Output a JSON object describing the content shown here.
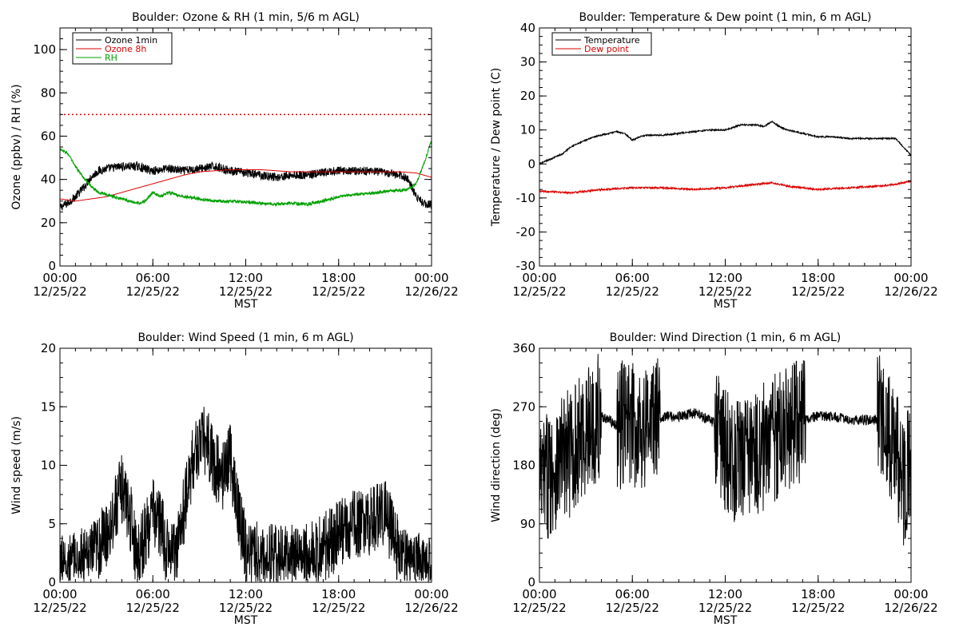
{
  "colors": {
    "black": "#000000",
    "red": "#dd0000",
    "green": "#00a000",
    "background": "#ffffff"
  },
  "chart_data": [
    {
      "id": "ozone_rh",
      "type": "line",
      "title": "Boulder: Ozone & RH (1 min, 5/6 m AGL)",
      "xlabel": "MST",
      "ylabel": "Ozone (ppbv) / RH (%)",
      "xlim": [
        0,
        24
      ],
      "ylim": [
        0,
        110
      ],
      "yticks": [
        0,
        20,
        40,
        60,
        80,
        100
      ],
      "xticks": [
        {
          "hour": 0,
          "time": "00:00",
          "date": "12/25/22"
        },
        {
          "hour": 6,
          "time": "06:00",
          "date": "12/25/22"
        },
        {
          "hour": 12,
          "time": "12:00",
          "date": "12/25/22"
        },
        {
          "hour": 18,
          "time": "18:00",
          "date": "12/25/22"
        },
        {
          "hour": 24,
          "time": "00:00",
          "date": "12/26/22"
        }
      ],
      "reference_line": {
        "y": 70,
        "color": "#dd0000",
        "style": "dotted"
      },
      "legend_position": "top-left",
      "series": [
        {
          "name": "Ozone 1min",
          "color": "#000000",
          "noise": 2.0,
          "x": [
            0,
            0.5,
            1,
            1.5,
            2,
            2.5,
            3,
            4,
            5,
            6,
            7,
            8,
            9,
            10,
            11,
            12,
            13,
            14,
            15,
            16,
            17,
            18,
            19,
            20,
            21,
            22,
            22.5,
            23,
            23.5,
            24
          ],
          "y": [
            27,
            29,
            32,
            36,
            41,
            44,
            45,
            46,
            46,
            44,
            45,
            44,
            45,
            46,
            44,
            43,
            42,
            41,
            42,
            42,
            43,
            44,
            44,
            44,
            43,
            42,
            40,
            32,
            29,
            28
          ]
        },
        {
          "name": "Ozone 8h",
          "color": "#dd0000",
          "noise": 0,
          "x": [
            0,
            1,
            2,
            3,
            4,
            5,
            6,
            7,
            8,
            9,
            10,
            11,
            12,
            13,
            14,
            15,
            16,
            17,
            18,
            19,
            20,
            21,
            22,
            23,
            24
          ],
          "y": [
            31,
            30,
            31,
            32,
            34,
            36,
            38,
            40,
            42,
            43.5,
            44,
            44.5,
            44.5,
            44.5,
            44,
            43.5,
            43.5,
            43.5,
            43.5,
            43.5,
            43.5,
            43.5,
            43.5,
            43,
            41
          ]
        },
        {
          "name": "RH",
          "color": "#00a000",
          "noise": 0.7,
          "x": [
            0,
            0.5,
            1,
            1.5,
            2,
            2.5,
            3,
            3.5,
            4,
            4.5,
            5,
            5.5,
            6,
            6.5,
            7,
            8,
            9,
            10,
            11,
            12,
            13,
            14,
            15,
            16,
            17,
            18,
            19,
            20,
            21,
            22,
            22.5,
            23,
            23.5,
            24
          ],
          "y": [
            54,
            52,
            46,
            41,
            37,
            34,
            33,
            32,
            31,
            30,
            29,
            30,
            34,
            32,
            34,
            32,
            31,
            30,
            30,
            29.5,
            29,
            28.5,
            29,
            28.5,
            30,
            32,
            33,
            33.5,
            34.5,
            35,
            35.5,
            38,
            47,
            58
          ]
        }
      ]
    },
    {
      "id": "temp_dew",
      "type": "line",
      "title": "Boulder: Temperature & Dew point (1 min, 6 m AGL)",
      "xlabel": "MST",
      "ylabel": "Temperature / Dew point (C)",
      "xlim": [
        0,
        24
      ],
      "ylim": [
        -30,
        40
      ],
      "yticks": [
        -30,
        -20,
        -10,
        0,
        10,
        20,
        30,
        40
      ],
      "xticks": [
        {
          "hour": 0,
          "time": "00:00",
          "date": "12/25/22"
        },
        {
          "hour": 6,
          "time": "06:00",
          "date": "12/25/22"
        },
        {
          "hour": 12,
          "time": "12:00",
          "date": "12/25/22"
        },
        {
          "hour": 18,
          "time": "18:00",
          "date": "12/25/22"
        },
        {
          "hour": 24,
          "time": "00:00",
          "date": "12/26/22"
        }
      ],
      "legend_position": "top-left",
      "series": [
        {
          "name": "Temperature",
          "color": "#000000",
          "noise": 0.2,
          "x": [
            0,
            0.5,
            1,
            1.5,
            2,
            2.5,
            3,
            3.5,
            4,
            4.5,
            5,
            5.5,
            6,
            6.5,
            7,
            8,
            9,
            10,
            11,
            12,
            13,
            14,
            14.5,
            15,
            15.5,
            16,
            17,
            18,
            19,
            20,
            21,
            22,
            23,
            23.5,
            24
          ],
          "y": [
            0,
            1,
            2,
            3,
            5,
            6,
            7,
            8,
            8.5,
            9,
            9.5,
            9,
            7,
            8,
            8.5,
            8.5,
            9,
            9.5,
            10,
            10,
            11.5,
            11.5,
            11,
            12.5,
            11,
            10,
            9,
            8,
            8,
            7.5,
            7.5,
            7.5,
            7.5,
            5,
            2.5
          ]
        },
        {
          "name": "Dew point",
          "color": "#dd0000",
          "noise": 0.25,
          "x": [
            0,
            2,
            3,
            4,
            6,
            8,
            10,
            12,
            14,
            15,
            16,
            18,
            20,
            22,
            23,
            24
          ],
          "y": [
            -8,
            -8.5,
            -8,
            -7.5,
            -7,
            -7,
            -7.5,
            -7,
            -6,
            -5.5,
            -6.5,
            -7.5,
            -7,
            -6.5,
            -6,
            -5
          ]
        }
      ]
    },
    {
      "id": "wind_speed",
      "type": "line",
      "title": "Boulder: Wind Speed (1 min, 6 m AGL)",
      "xlabel": "MST",
      "ylabel": "Wind speed (m/s)",
      "xlim": [
        0,
        24
      ],
      "ylim": [
        0,
        20
      ],
      "yticks": [
        0,
        5,
        10,
        15,
        20
      ],
      "xticks": [
        {
          "hour": 0,
          "time": "00:00",
          "date": "12/25/22"
        },
        {
          "hour": 6,
          "time": "06:00",
          "date": "12/25/22"
        },
        {
          "hour": 12,
          "time": "12:00",
          "date": "12/25/22"
        },
        {
          "hour": 18,
          "time": "18:00",
          "date": "12/25/22"
        },
        {
          "hour": 24,
          "time": "00:00",
          "date": "12/26/22"
        }
      ],
      "series": [
        {
          "name": "",
          "color": "#000000",
          "noise": 3.0,
          "floor": 0,
          "x": [
            0,
            1,
            2,
            3,
            3.5,
            4,
            4.5,
            5,
            5.5,
            6,
            6.5,
            7,
            7.5,
            8,
            8.5,
            9,
            9.5,
            10,
            10.5,
            11,
            11.5,
            12,
            13,
            14,
            15,
            16,
            17,
            18,
            19,
            20,
            20.5,
            21,
            21.5,
            22,
            23,
            24
          ],
          "y": [
            1,
            1.5,
            2,
            4,
            6,
            8,
            6,
            2,
            4,
            6,
            5,
            2,
            3,
            6,
            10,
            12,
            12,
            10,
            9,
            11,
            6,
            3,
            2,
            2,
            2,
            2,
            3,
            4,
            5,
            5,
            6,
            6,
            4,
            2,
            1.5,
            1
          ]
        }
      ]
    },
    {
      "id": "wind_dir",
      "type": "line",
      "title": "Boulder: Wind Direction (1 min, 6 m AGL)",
      "xlabel": "MST",
      "ylabel": "Wind direction (deg)",
      "xlim": [
        0,
        24
      ],
      "ylim": [
        0,
        360
      ],
      "yticks": [
        0,
        90,
        180,
        270,
        360
      ],
      "xticks": [
        {
          "hour": 0,
          "time": "00:00",
          "date": "12/25/22"
        },
        {
          "hour": 6,
          "time": "06:00",
          "date": "12/25/22"
        },
        {
          "hour": 12,
          "time": "12:00",
          "date": "12/25/22"
        },
        {
          "hour": 18,
          "time": "18:00",
          "date": "12/25/22"
        },
        {
          "hour": 24,
          "time": "00:00",
          "date": "12/26/22"
        }
      ],
      "series": [
        {
          "name": "",
          "color": "#000000",
          "noise": 100,
          "floor": 0,
          "ceil": 360,
          "x": [
            0,
            1,
            2,
            3,
            3.5,
            4,
            4.5,
            5,
            5.5,
            6,
            6.5,
            7,
            8,
            9,
            10,
            11,
            11.5,
            12,
            12.5,
            13,
            13.5,
            14,
            14.5,
            15,
            15.5,
            16,
            16.5,
            17,
            18,
            19,
            20,
            21,
            22,
            22.5,
            23,
            23.5,
            24
          ],
          "y": [
            150,
            180,
            200,
            230,
            250,
            255,
            250,
            240,
            245,
            240,
            240,
            245,
            255,
            255,
            260,
            250,
            240,
            200,
            180,
            200,
            190,
            200,
            210,
            220,
            230,
            240,
            250,
            250,
            255,
            255,
            250,
            250,
            250,
            240,
            200,
            150,
            180
          ],
          "quiet_windows": [
            [
              4.0,
              5.0
            ],
            [
              7.8,
              11.3
            ],
            [
              17.2,
              21.8
            ]
          ],
          "quiet_noise": 8
        }
      ]
    }
  ]
}
